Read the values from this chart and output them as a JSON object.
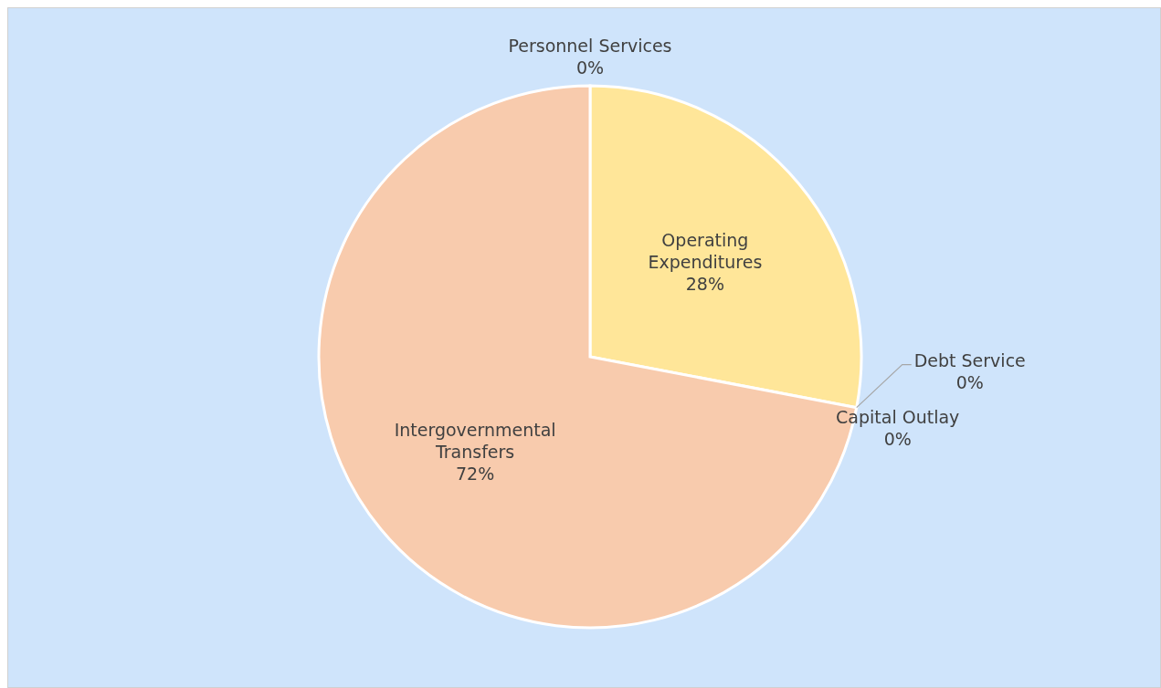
{
  "chart_data": {
    "type": "pie",
    "categories": [
      "Personnel Services",
      "Operating Expenditures",
      "Debt Service",
      "Capital Outlay",
      "Intergovernmental Transfers"
    ],
    "values": [
      0,
      28,
      0,
      0,
      72
    ],
    "colors": [
      "#9dc3e6",
      "#ffe699",
      "#a9d18e",
      "#c9c9c9",
      "#f8cbad"
    ],
    "value_labels": [
      "0%",
      "28%",
      "0%",
      "0%",
      "72%"
    ]
  }
}
